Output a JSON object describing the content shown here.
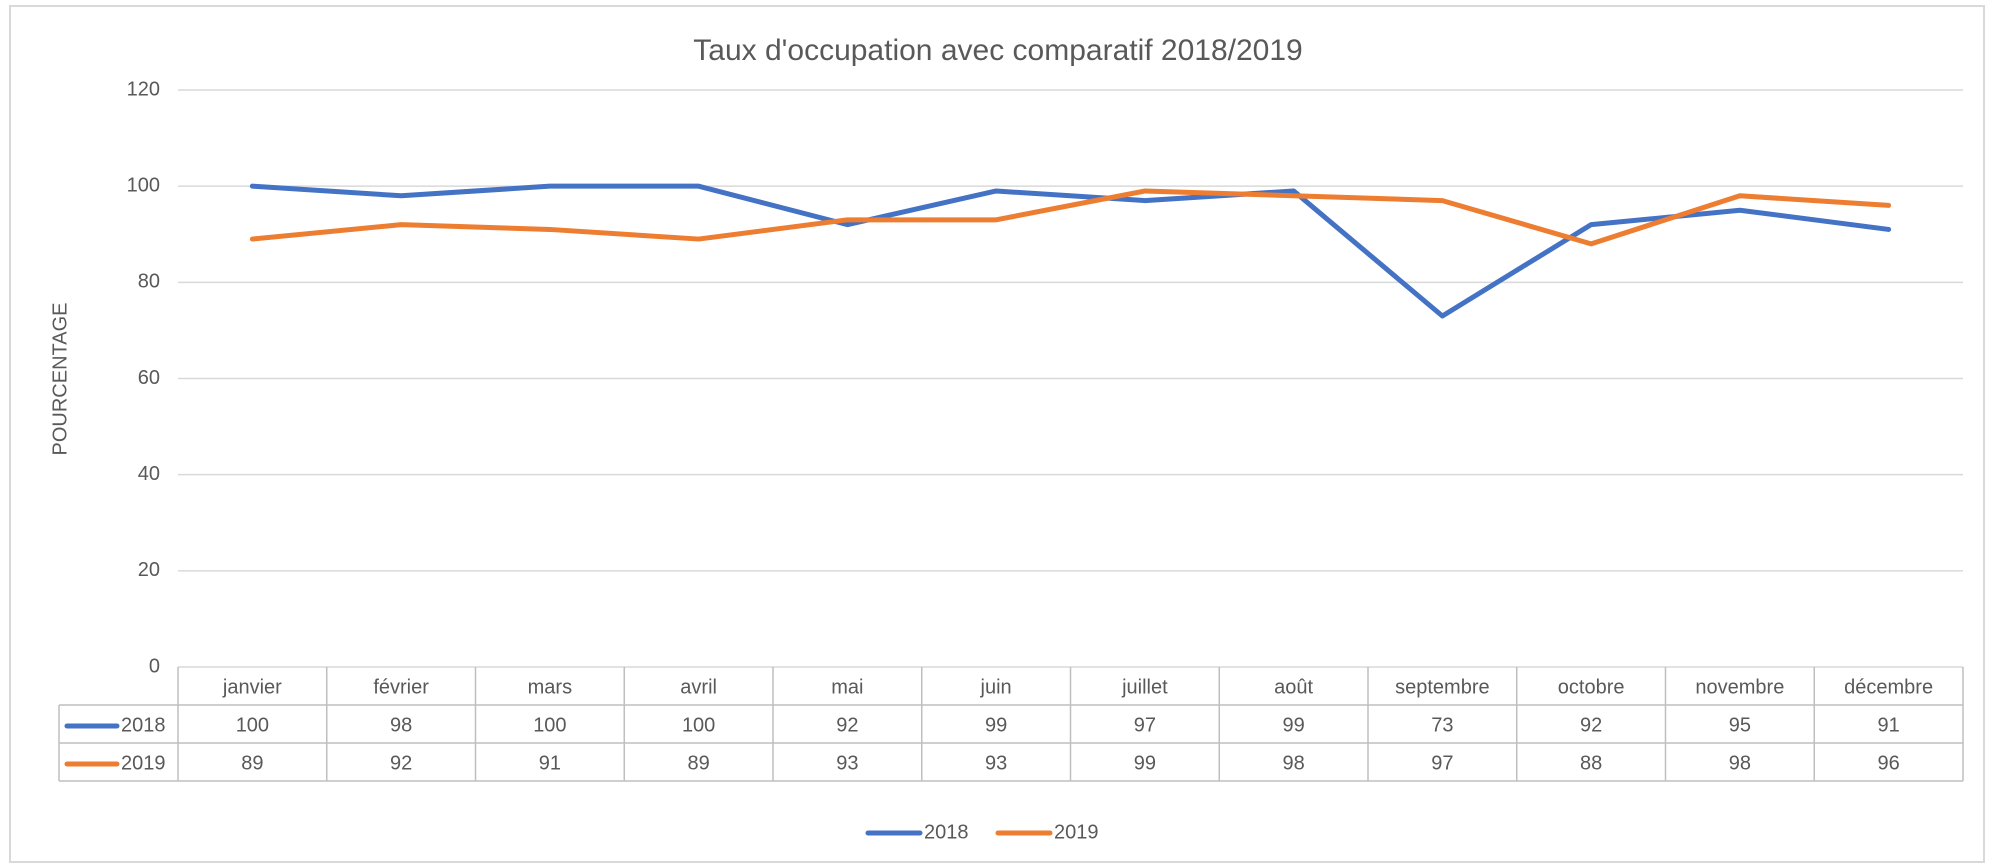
{
  "chart_data": {
    "type": "line",
    "title": "Taux d'occupation avec comparatif 2018/2019",
    "y_label": "POURCENTAGE",
    "categories": [
      "janvier",
      "février",
      "mars",
      "avril",
      "mai",
      "juin",
      "juillet",
      "août",
      "septembre",
      "octobre",
      "novembre",
      "décembre"
    ],
    "series": [
      {
        "name": "2018",
        "color": "#4472c4",
        "values": [
          100,
          98,
          100,
          100,
          92,
          99,
          97,
          99,
          73,
          92,
          95,
          91
        ]
      },
      {
        "name": "2019",
        "color": "#ed7d31",
        "values": [
          89,
          92,
          91,
          89,
          93,
          93,
          99,
          98,
          97,
          88,
          98,
          96
        ]
      }
    ],
    "ylim": [
      0,
      120
    ],
    "yticks": [
      0,
      20,
      40,
      60,
      80,
      100,
      120
    ],
    "grid": true,
    "legend": "bottom",
    "data_table": true
  }
}
